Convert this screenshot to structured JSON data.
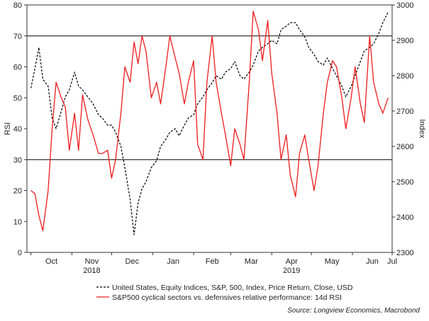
{
  "chart_data": {
    "type": "line",
    "left_axis": {
      "label": "RSI",
      "ylim": [
        0,
        80
      ],
      "ticks": [
        0,
        10,
        20,
        30,
        40,
        50,
        60,
        70,
        80
      ]
    },
    "right_axis": {
      "label": "Index",
      "ylim": [
        2300,
        3000
      ],
      "ticks": [
        2300,
        2400,
        2500,
        2600,
        2700,
        2800,
        2900,
        3000
      ]
    },
    "x_axis": {
      "month_labels": [
        "Oct",
        "Nov",
        "Dec",
        "Jan",
        "Feb",
        "Mar",
        "Apr",
        "May",
        "Jun",
        "Jul"
      ],
      "year_labels": [
        {
          "text": "2018",
          "under": "Nov"
        },
        {
          "text": "2019",
          "under": "Apr"
        }
      ]
    },
    "reference_lines": [
      {
        "axis": "left",
        "value": 70
      },
      {
        "axis": "left",
        "value": 30
      }
    ],
    "series": [
      {
        "name": "United States, Equity Indices, S&P, 500, Index, Price Return, Close, USD",
        "axis": "right",
        "color": "#000000",
        "style": "dashed",
        "x": [
          "2018-10-01",
          "2018-10-04",
          "2018-10-07",
          "2018-10-10",
          "2018-10-14",
          "2018-10-17",
          "2018-10-20",
          "2018-10-24",
          "2018-10-27",
          "2018-10-30",
          "2018-11-03",
          "2018-11-06",
          "2018-11-09",
          "2018-11-13",
          "2018-11-17",
          "2018-11-21",
          "2018-11-24",
          "2018-11-28",
          "2018-12-01",
          "2018-12-04",
          "2018-12-08",
          "2018-12-11",
          "2018-12-15",
          "2018-12-18",
          "2018-12-21",
          "2018-12-24",
          "2018-12-27",
          "2018-12-31",
          "2019-01-04",
          "2019-01-07",
          "2019-01-11",
          "2019-01-14",
          "2019-01-18",
          "2019-01-21",
          "2019-01-25",
          "2019-01-28",
          "2019-02-01",
          "2019-02-04",
          "2019-02-08",
          "2019-02-11",
          "2019-02-15",
          "2019-02-18",
          "2019-02-22",
          "2019-02-25",
          "2019-03-01",
          "2019-03-04",
          "2019-03-08",
          "2019-03-11",
          "2019-03-15",
          "2019-03-18",
          "2019-03-22",
          "2019-03-25",
          "2019-03-29",
          "2019-04-01",
          "2019-04-05",
          "2019-04-08",
          "2019-04-12",
          "2019-04-15",
          "2019-04-19",
          "2019-04-22",
          "2019-04-26",
          "2019-04-29",
          "2019-05-03",
          "2019-05-06",
          "2019-05-10",
          "2019-05-13",
          "2019-05-17",
          "2019-05-20",
          "2019-05-24",
          "2019-05-27",
          "2019-05-31",
          "2019-06-03",
          "2019-06-07",
          "2019-06-10",
          "2019-06-14",
          "2019-06-17",
          "2019-06-21",
          "2019-06-24",
          "2019-06-28"
        ],
        "values": [
          2765,
          2820,
          2880,
          2790,
          2770,
          2680,
          2650,
          2700,
          2740,
          2760,
          2810,
          2770,
          2760,
          2740,
          2720,
          2690,
          2680,
          2660,
          2660,
          2640,
          2600,
          2540,
          2450,
          2350,
          2440,
          2480,
          2500,
          2540,
          2560,
          2600,
          2620,
          2640,
          2650,
          2630,
          2660,
          2680,
          2690,
          2720,
          2740,
          2760,
          2780,
          2800,
          2790,
          2810,
          2820,
          2840,
          2800,
          2790,
          2810,
          2830,
          2870,
          2880,
          2890,
          2900,
          2890,
          2930,
          2940,
          2950,
          2950,
          2930,
          2910,
          2880,
          2860,
          2840,
          2830,
          2850,
          2820,
          2800,
          2770,
          2740,
          2770,
          2800,
          2840,
          2870,
          2880,
          2890,
          2920,
          2950,
          2980
        ]
      },
      {
        "name": "S&P500 cyclical sectors vs. defensives relative performance: 14d RSI",
        "axis": "left",
        "color": "#ee1c1c",
        "style": "solid",
        "x": [
          "2018-10-01",
          "2018-10-04",
          "2018-10-07",
          "2018-10-10",
          "2018-10-14",
          "2018-10-17",
          "2018-10-20",
          "2018-10-24",
          "2018-10-27",
          "2018-10-30",
          "2018-11-03",
          "2018-11-06",
          "2018-11-09",
          "2018-11-13",
          "2018-11-17",
          "2018-11-21",
          "2018-11-24",
          "2018-11-28",
          "2018-12-01",
          "2018-12-04",
          "2018-12-08",
          "2018-12-11",
          "2018-12-15",
          "2018-12-18",
          "2018-12-21",
          "2018-12-24",
          "2018-12-27",
          "2018-12-31",
          "2019-01-04",
          "2019-01-07",
          "2019-01-11",
          "2019-01-14",
          "2019-01-18",
          "2019-01-21",
          "2019-01-25",
          "2019-01-28",
          "2019-02-01",
          "2019-02-04",
          "2019-02-08",
          "2019-02-11",
          "2019-02-15",
          "2019-02-18",
          "2019-02-22",
          "2019-02-25",
          "2019-03-01",
          "2019-03-04",
          "2019-03-08",
          "2019-03-11",
          "2019-03-15",
          "2019-03-18",
          "2019-03-22",
          "2019-03-25",
          "2019-03-29",
          "2019-04-01",
          "2019-04-05",
          "2019-04-08",
          "2019-04-12",
          "2019-04-15",
          "2019-04-19",
          "2019-04-22",
          "2019-04-26",
          "2019-04-29",
          "2019-05-03",
          "2019-05-06",
          "2019-05-10",
          "2019-05-13",
          "2019-05-17",
          "2019-05-20",
          "2019-05-24",
          "2019-05-27",
          "2019-05-31",
          "2019-06-03",
          "2019-06-07",
          "2019-06-10",
          "2019-06-14",
          "2019-06-17",
          "2019-06-21",
          "2019-06-24",
          "2019-06-28"
        ],
        "values": [
          20,
          19,
          12,
          7,
          20,
          40,
          55,
          50,
          47,
          33,
          45,
          33,
          51,
          43,
          38,
          32,
          32,
          33,
          24,
          30,
          45,
          60,
          55,
          68,
          61,
          70,
          65,
          50,
          55,
          48,
          60,
          70,
          63,
          58,
          48,
          55,
          62,
          35,
          30,
          55,
          70,
          55,
          45,
          38,
          28,
          40,
          35,
          30,
          55,
          78,
          72,
          62,
          75,
          58,
          45,
          30,
          38,
          25,
          18,
          32,
          38,
          30,
          20,
          28,
          45,
          55,
          62,
          60,
          50,
          40,
          50,
          60,
          48,
          42,
          70,
          55,
          48,
          45,
          50
        ]
      }
    ]
  },
  "legend": {
    "items": [
      {
        "label": "United States, Equity Indices, S&P, 500, Index, Price Return, Close, USD",
        "style": "dashed",
        "color": "#000000"
      },
      {
        "label": "S&P500 cyclical sectors vs. defensives relative performance: 14d RSI",
        "style": "solid",
        "color": "#ee1c1c"
      }
    ]
  },
  "source": "Source: Longview Economics, Macrobond"
}
